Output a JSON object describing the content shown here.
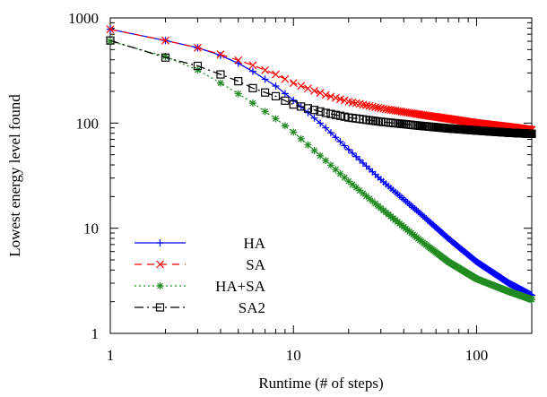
{
  "chart_data": {
    "type": "line",
    "xlabel": "Runtime (# of steps)",
    "ylabel": "Lowest energy level found",
    "x_scale": "log",
    "y_scale": "log",
    "xlim": [
      1,
      200
    ],
    "ylim": [
      1,
      1000
    ],
    "x_ticks": [
      1,
      10,
      100
    ],
    "x_tick_labels": [
      "1",
      "10",
      "100"
    ],
    "y_ticks": [
      1,
      10,
      100,
      1000
    ],
    "y_tick_labels": [
      "1",
      "10",
      "100",
      "1000"
    ],
    "grid": false,
    "legend_position": "bottom-left",
    "x": [
      1,
      2,
      3,
      4,
      5,
      6,
      8,
      10,
      15,
      20,
      30,
      50,
      70,
      100,
      150,
      200
    ],
    "series": [
      {
        "name": "HA",
        "color": "#0000ff",
        "dash": "solid",
        "marker": "plus",
        "values": [
          780,
          610,
          520,
          440,
          370,
          310,
          225,
          165,
          90,
          56,
          29,
          13.5,
          8,
          4.8,
          3.0,
          2.3
        ]
      },
      {
        "name": "SA",
        "color": "#ff0000",
        "dash": "dashed",
        "marker": "x",
        "values": [
          780,
          610,
          520,
          450,
          395,
          355,
          290,
          240,
          185,
          160,
          138,
          120,
          110,
          100,
          92,
          86
        ]
      },
      {
        "name": "HA+SA",
        "color": "#228b22",
        "dash": "dotted",
        "marker": "star",
        "values": [
          600,
          430,
          320,
          240,
          190,
          155,
          110,
          82,
          44,
          28,
          15.5,
          7.5,
          4.8,
          3.3,
          2.5,
          2.1
        ]
      },
      {
        "name": "SA2",
        "color": "#000000",
        "dash": "dashdot",
        "marker": "square",
        "values": [
          610,
          420,
          350,
          290,
          250,
          215,
          180,
          150,
          125,
          113,
          103,
          94,
          89,
          85,
          81,
          79
        ]
      }
    ]
  }
}
